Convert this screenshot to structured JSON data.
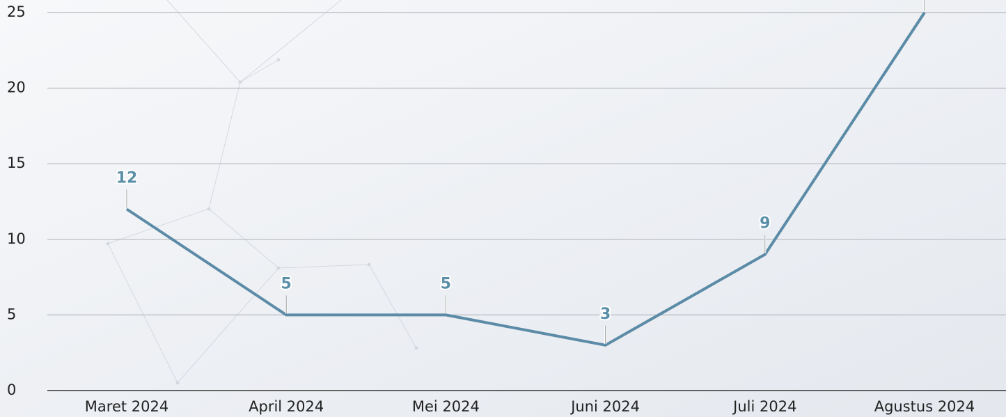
{
  "chart_data": {
    "type": "line",
    "categories": [
      "Maret 2024",
      "April 2024",
      "Mei 2024",
      "Juni 2024",
      "Juli 2024",
      "Agustus 2024"
    ],
    "series": [
      {
        "color": "#5b8ba6",
        "values": [
          12,
          5,
          5,
          3,
          9,
          25
        ]
      }
    ],
    "ylim": [
      0,
      25
    ],
    "yticks": [
      0,
      5,
      10,
      15,
      20,
      25
    ],
    "grid": true
  }
}
